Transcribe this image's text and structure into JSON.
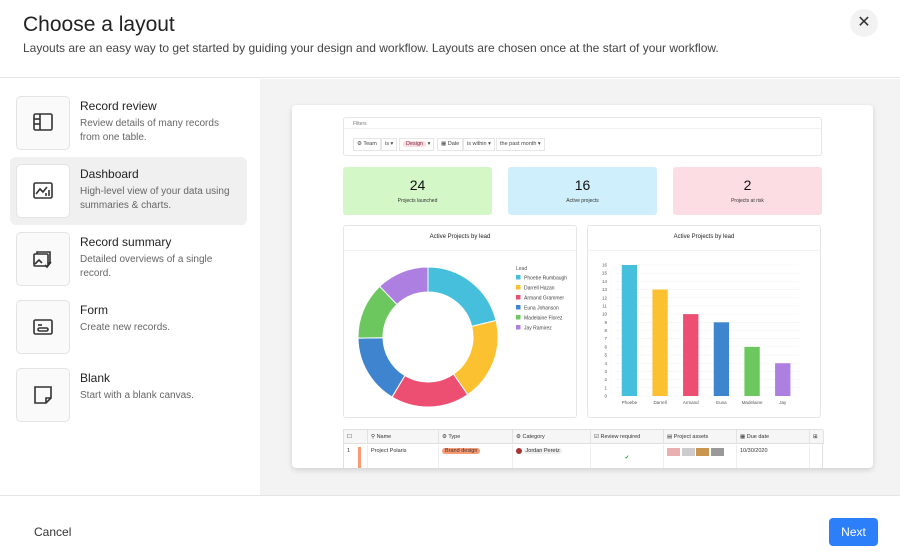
{
  "header": {
    "title": "Choose a layout",
    "subtitle": "Layouts are an easy way to get started by guiding your design and workflow. Layouts are chosen once at the start of your workflow.",
    "close_icon": "close-icon"
  },
  "layouts": [
    {
      "name": "Record review",
      "desc": "Review details of many records from one table.",
      "icon": "record-review-icon",
      "selected": false
    },
    {
      "name": "Dashboard",
      "desc": "High-level view of your data using summaries & charts.",
      "icon": "dashboard-icon",
      "selected": true
    },
    {
      "name": "Record summary",
      "desc": "Detailed overviews of a single record.",
      "icon": "record-summary-icon",
      "selected": false
    },
    {
      "name": "Form",
      "desc": "Create new records.",
      "icon": "form-icon",
      "selected": false
    },
    {
      "name": "Blank",
      "desc": "Start with a blank canvas.",
      "icon": "blank-icon",
      "selected": false
    }
  ],
  "preview": {
    "filters": {
      "label": "Filters",
      "team_field": "Team",
      "team_op": "is",
      "team_value": "Design",
      "date_field": "Date",
      "date_op": "is within",
      "date_value": "the past month"
    },
    "stats": [
      {
        "value": "24",
        "label": "Projects launched",
        "color": "#d3f7c6"
      },
      {
        "value": "16",
        "label": "Active projects",
        "color": "#d0effc"
      },
      {
        "value": "2",
        "label": "Projects at risk",
        "color": "#fddde4"
      }
    ],
    "table": {
      "columns": [
        "Name",
        "Type",
        "Category",
        "Review required",
        "Project assets",
        "Due date"
      ],
      "row": {
        "index": "1",
        "name": "Project Polaris",
        "type": "Brand design",
        "category": "Jordan Peretz",
        "review_required": true,
        "due_date": "10/30/2020"
      }
    }
  },
  "chart_data": [
    {
      "type": "pie",
      "title": "Active Projects by lead",
      "legend_title": "Lead",
      "legend_placement": "right",
      "labels": [
        "Phoebe Rumbaugh",
        "Darrell Hazan",
        "Armand Grammer",
        "Euna Johanson",
        "Madelaine Florez",
        "Jay Ramirez"
      ],
      "values": [
        21,
        19,
        18,
        16,
        13,
        12
      ],
      "colors": [
        "#45bfdc",
        "#fcc130",
        "#ec4f72",
        "#3f84cf",
        "#6dc75f",
        "#ad7fe0"
      ]
    },
    {
      "type": "bar",
      "title": "Active Projects by lead",
      "categories": [
        "Phoebe",
        "Darrell",
        "Armand",
        "Euna",
        "Madelaine",
        "Jay"
      ],
      "values": [
        16,
        13,
        10,
        9,
        6,
        4
      ],
      "ylim": [
        0,
        16
      ],
      "grid": true,
      "colors": [
        "#45bfdc",
        "#fcc130",
        "#ec4f72",
        "#3f84cf",
        "#6dc75f",
        "#ad7fe0"
      ]
    }
  ],
  "footer": {
    "cancel": "Cancel",
    "next": "Next"
  }
}
